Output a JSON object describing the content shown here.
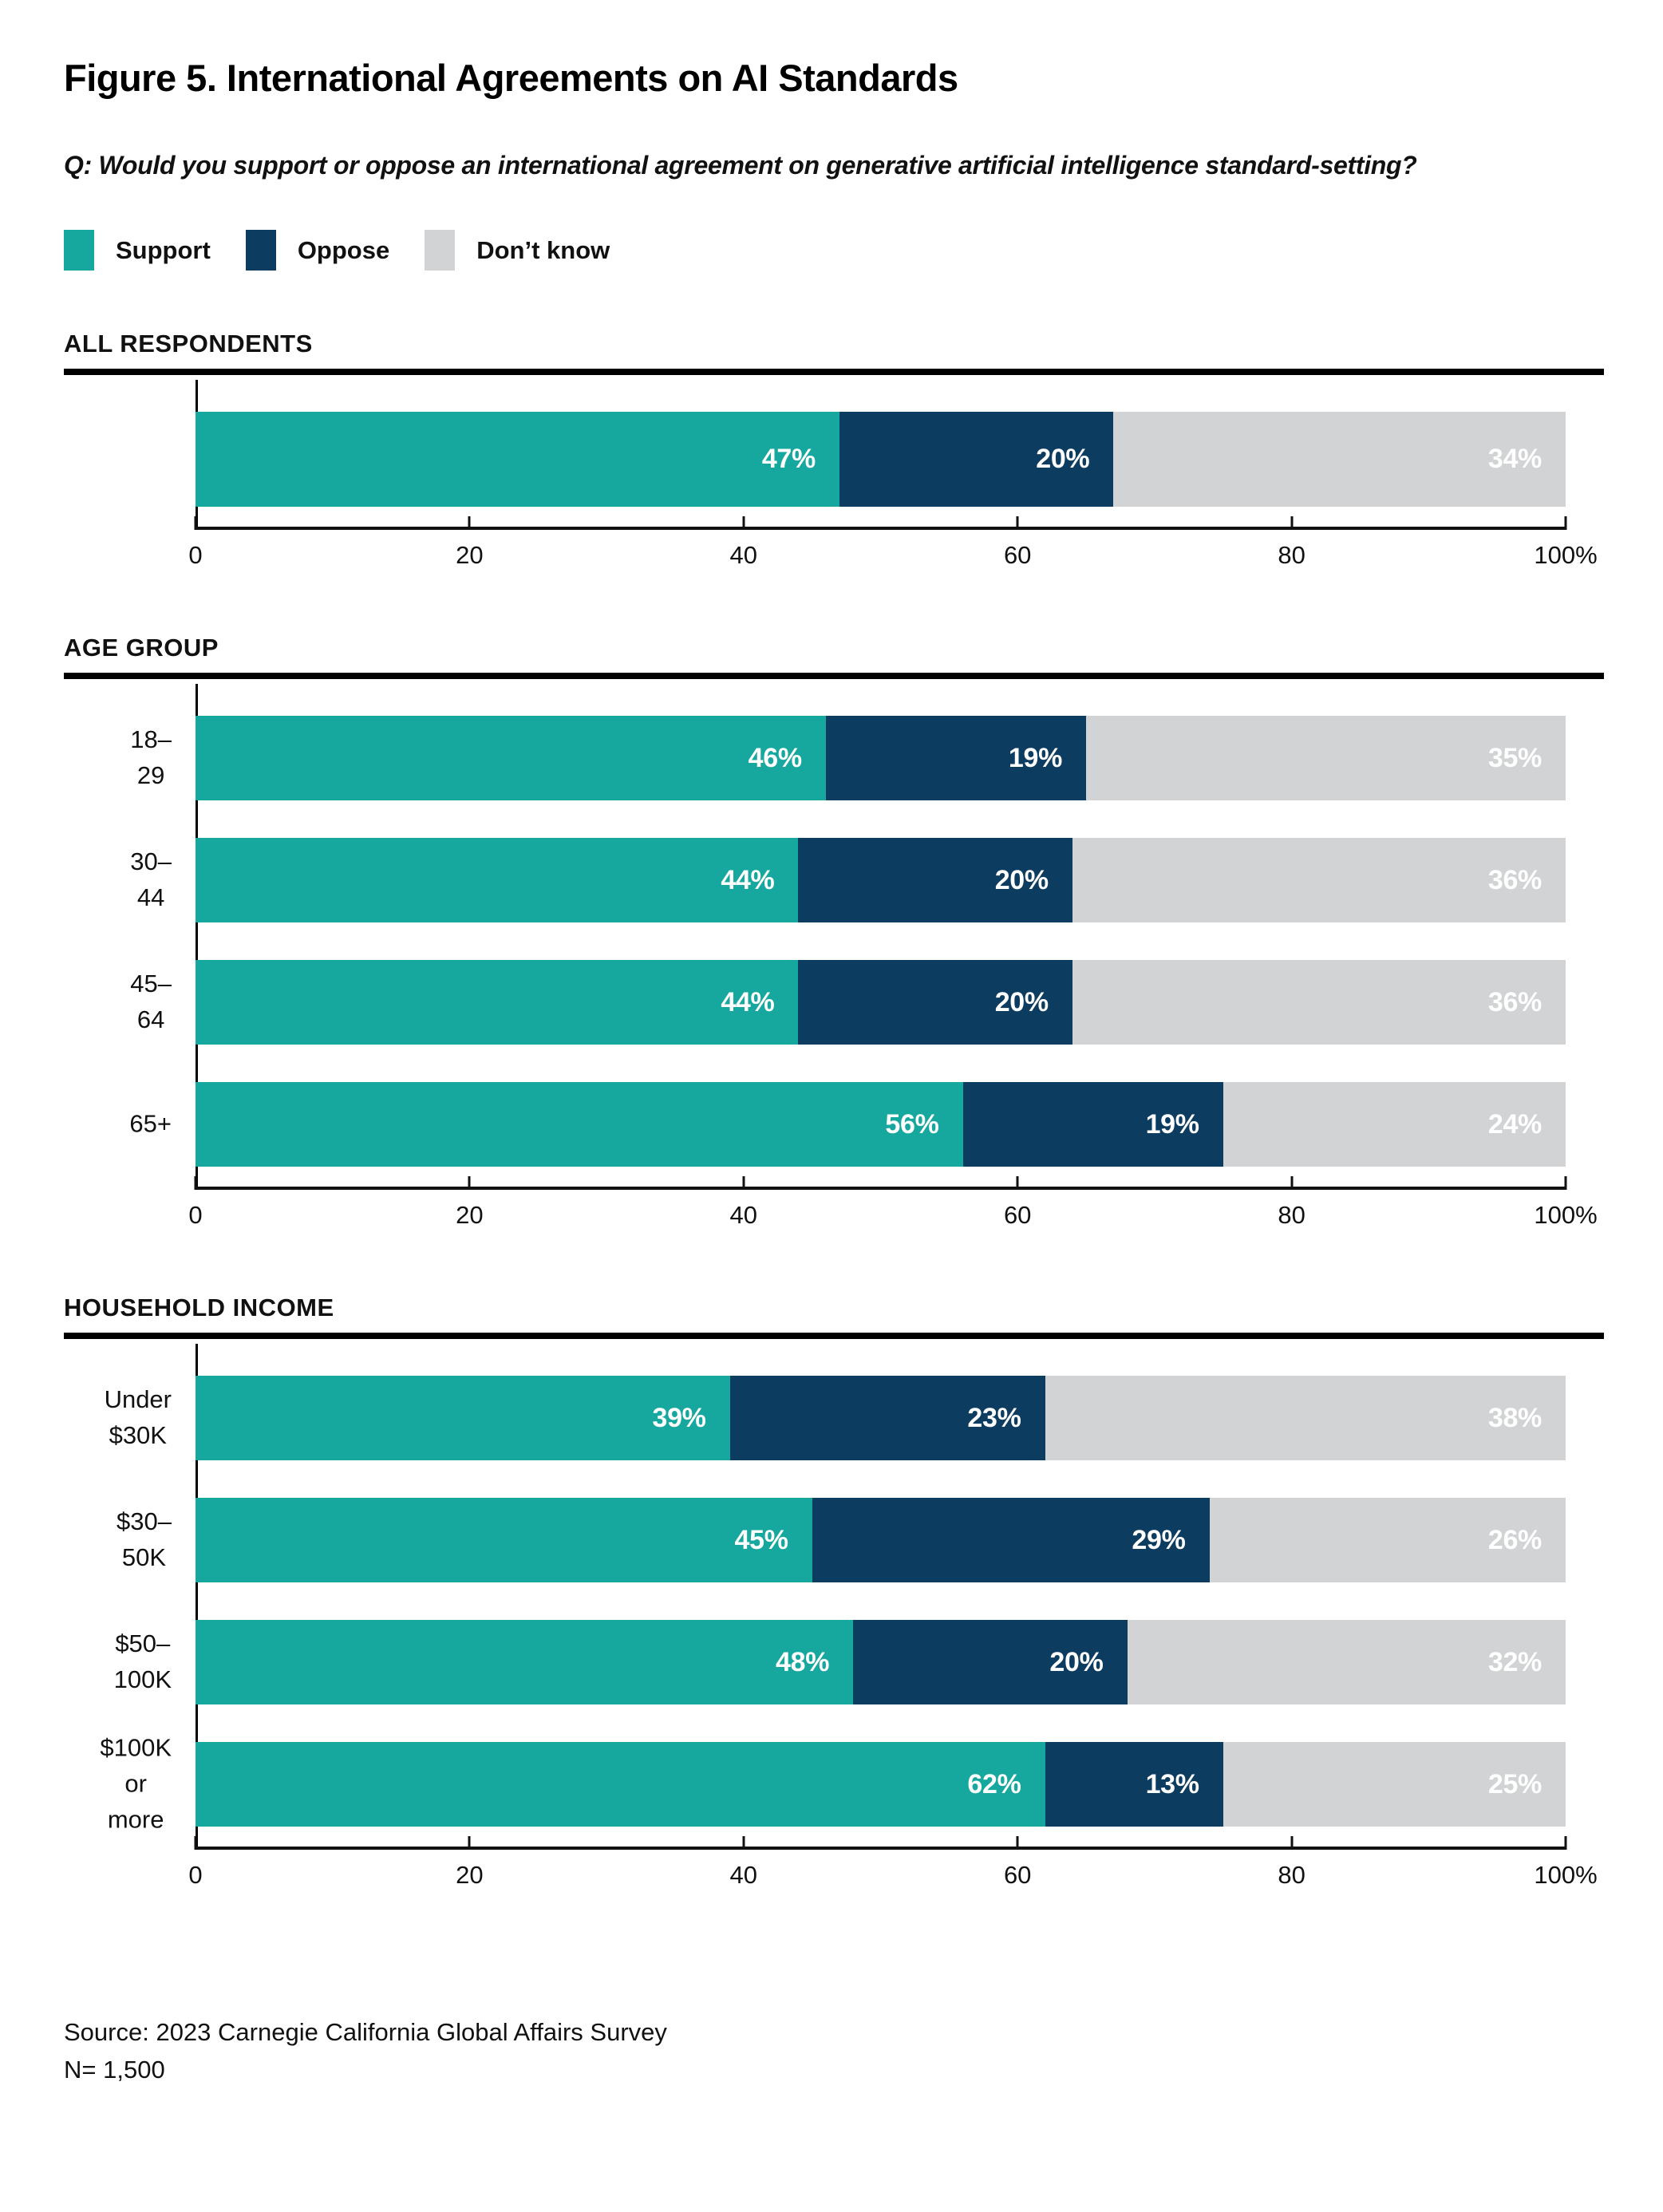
{
  "figure": {
    "title": "Figure 5. International Agreements on AI Standards",
    "question": "Q: Would you support or oppose an international agreement on generative artificial intelligence standard-setting?",
    "source": "Source: 2023 Carnegie California Global Affairs Survey",
    "sample_size": "N= 1,500"
  },
  "legend": {
    "items": [
      {
        "label": "Support",
        "color": "#16A89E"
      },
      {
        "label": "Oppose",
        "color": "#0D3C61"
      },
      {
        "label": "Don’t know",
        "color": "#D1D3D4"
      }
    ]
  },
  "chart_data": [
    {
      "type": "bar",
      "orientation": "horizontal",
      "stacked": true,
      "section": "ALL RESPONDENTS",
      "categories": [
        ""
      ],
      "series": [
        {
          "name": "Support",
          "color": "#16A89E",
          "values": [
            47
          ],
          "labels": [
            "47%"
          ]
        },
        {
          "name": "Oppose",
          "color": "#0D3C61",
          "values": [
            20
          ],
          "labels": [
            "20%"
          ]
        },
        {
          "name": "Don’t know",
          "color": "#D1D3D4",
          "values": [
            34
          ],
          "labels": [
            "34%"
          ]
        }
      ],
      "xlim": [
        0,
        100
      ],
      "x_ticks": [
        "0",
        "20",
        "40",
        "60",
        "80",
        "100%"
      ],
      "grid": false,
      "legend_position": "top"
    },
    {
      "type": "bar",
      "orientation": "horizontal",
      "stacked": true,
      "section": "AGE GROUP",
      "categories": [
        "18–29",
        "30–44",
        "45–64",
        "65+"
      ],
      "series": [
        {
          "name": "Support",
          "color": "#16A89E",
          "values": [
            46,
            44,
            44,
            56
          ],
          "labels": [
            "46%",
            "44%",
            "44%",
            "56%"
          ]
        },
        {
          "name": "Oppose",
          "color": "#0D3C61",
          "values": [
            19,
            20,
            20,
            19
          ],
          "labels": [
            "19%",
            "20%",
            "20%",
            "19%"
          ]
        },
        {
          "name": "Don’t know",
          "color": "#D1D3D4",
          "values": [
            35,
            36,
            36,
            24
          ],
          "labels": [
            "35%",
            "36%",
            "36%",
            "24%"
          ]
        }
      ],
      "xlim": [
        0,
        100
      ],
      "x_ticks": [
        "0",
        "20",
        "40",
        "60",
        "80",
        "100%"
      ],
      "grid": false,
      "legend_position": "top"
    },
    {
      "type": "bar",
      "orientation": "horizontal",
      "stacked": true,
      "section": "HOUSEHOLD INCOME",
      "categories": [
        "Under $30K",
        "$30–50K",
        "$50–100K",
        "$100K\nor more"
      ],
      "series": [
        {
          "name": "Support",
          "color": "#16A89E",
          "values": [
            39,
            45,
            48,
            62
          ],
          "labels": [
            "39%",
            "45%",
            "48%",
            "62%"
          ]
        },
        {
          "name": "Oppose",
          "color": "#0D3C61",
          "values": [
            23,
            29,
            20,
            13
          ],
          "labels": [
            "23%",
            "29%",
            "20%",
            "13%"
          ]
        },
        {
          "name": "Don’t know",
          "color": "#D1D3D4",
          "values": [
            38,
            26,
            32,
            25
          ],
          "labels": [
            "38%",
            "26%",
            "32%",
            "25%"
          ]
        }
      ],
      "xlim": [
        0,
        100
      ],
      "x_ticks": [
        "0",
        "20",
        "40",
        "60",
        "80",
        "100%"
      ],
      "grid": false,
      "legend_position": "top"
    }
  ]
}
